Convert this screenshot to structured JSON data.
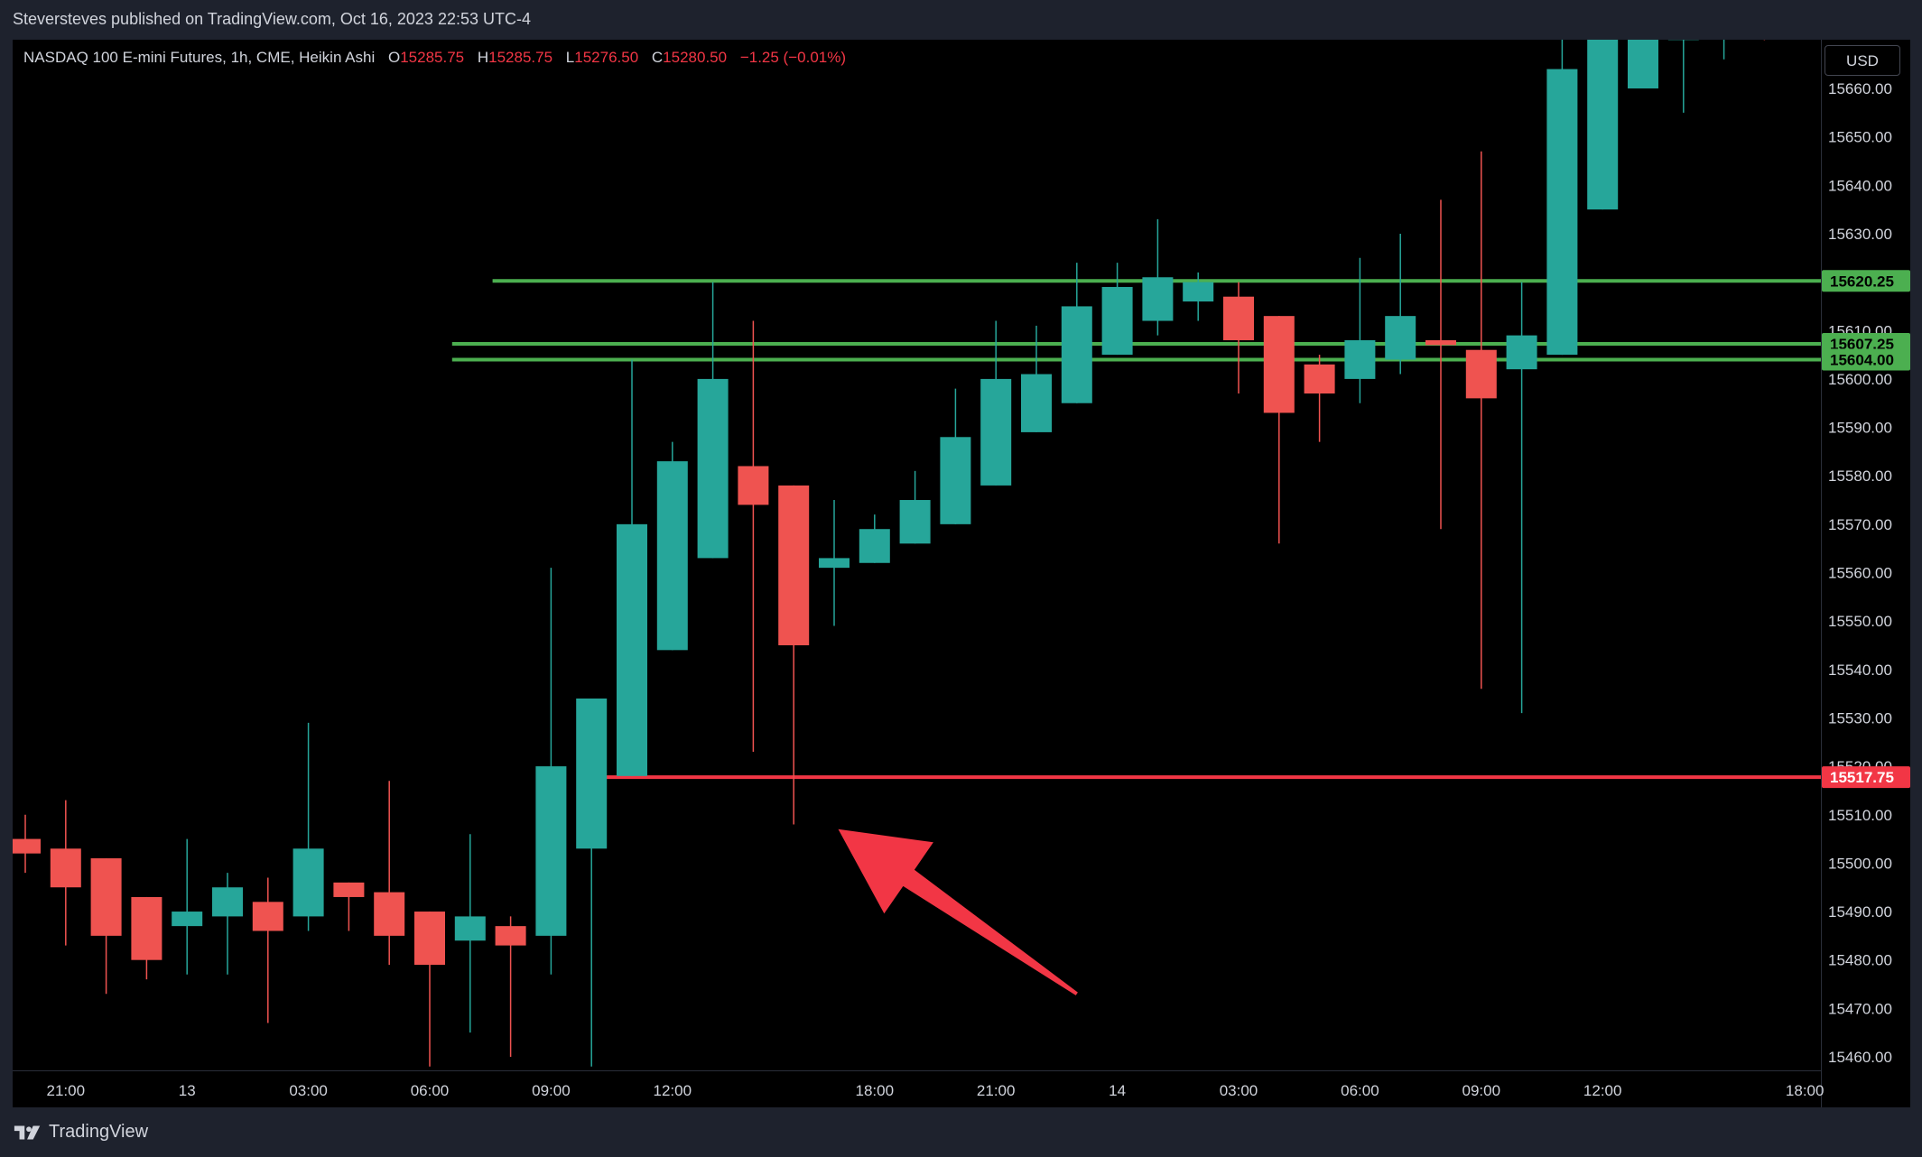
{
  "header": {
    "publish_line": "Steversteves published on TradingView.com, Oct 16, 2023 22:53 UTC-4"
  },
  "legend": {
    "symbol": "NASDAQ 100 E-mini Futures, 1h, CME, Heikin Ashi",
    "o_label": "O",
    "o_value": "15285.75",
    "h_label": "H",
    "h_value": "15285.75",
    "l_label": "L",
    "l_value": "15276.50",
    "c_label": "C",
    "c_value": "15280.50",
    "change": "−1.25 (−0.01%)"
  },
  "toolbar": {
    "currency": "USD"
  },
  "footer": {
    "brand": "TradingView"
  },
  "colors": {
    "up": "#26a69a",
    "down": "#ef5350",
    "support": "#4caf50",
    "resistance": "#f23645",
    "arrow": "#f23645"
  },
  "chart_data": {
    "type": "candlestick",
    "style": "Heikin Ashi",
    "y_axis": {
      "min": 15455,
      "max": 15670,
      "ticks": [
        15460,
        15470,
        15480,
        15490,
        15500,
        15510,
        15520,
        15530,
        15540,
        15550,
        15560,
        15570,
        15580,
        15590,
        15600,
        15610,
        15620,
        15630,
        15640,
        15650,
        15660
      ]
    },
    "x_axis": {
      "ticks": [
        {
          "index": 1,
          "label": "21:00"
        },
        {
          "index": 4,
          "label": "13"
        },
        {
          "index": 7,
          "label": "03:00"
        },
        {
          "index": 10,
          "label": "06:00"
        },
        {
          "index": 13,
          "label": "09:00"
        },
        {
          "index": 16,
          "label": "12:00"
        },
        {
          "index": 21,
          "label": "18:00"
        },
        {
          "index": 24,
          "label": "21:00"
        },
        {
          "index": 27,
          "label": "14"
        },
        {
          "index": 30,
          "label": "03:00"
        },
        {
          "index": 33,
          "label": "06:00"
        },
        {
          "index": 36,
          "label": "09:00"
        },
        {
          "index": 39,
          "label": "12:00"
        },
        {
          "index": 44,
          "label": "18:00"
        }
      ]
    },
    "candles": [
      {
        "o": 15505,
        "h": 15510,
        "l": 15498,
        "c": 15502
      },
      {
        "o": 15503,
        "h": 15513,
        "l": 15483,
        "c": 15495
      },
      {
        "o": 15501,
        "h": 15501,
        "l": 15473,
        "c": 15485
      },
      {
        "o": 15493,
        "h": 15493,
        "l": 15476,
        "c": 15480
      },
      {
        "o": 15487,
        "h": 15505,
        "l": 15477,
        "c": 15490
      },
      {
        "o": 15489,
        "h": 15498,
        "l": 15477,
        "c": 15495
      },
      {
        "o": 15492,
        "h": 15497,
        "l": 15467,
        "c": 15486
      },
      {
        "o": 15489,
        "h": 15529,
        "l": 15486,
        "c": 15503
      },
      {
        "o": 15496,
        "h": 15496,
        "l": 15486,
        "c": 15493
      },
      {
        "o": 15494,
        "h": 15517,
        "l": 15479,
        "c": 15485
      },
      {
        "o": 15490,
        "h": 15490,
        "l": 15458,
        "c": 15479
      },
      {
        "o": 15484,
        "h": 15506,
        "l": 15465,
        "c": 15489
      },
      {
        "o": 15487,
        "h": 15489,
        "l": 15460,
        "c": 15483
      },
      {
        "o": 15485,
        "h": 15561,
        "l": 15477,
        "c": 15520
      },
      {
        "o": 15503,
        "h": 15532,
        "l": 15458,
        "c": 15534
      },
      {
        "o": 15518,
        "h": 15604,
        "l": 15518,
        "c": 15570
      },
      {
        "o": 15544,
        "h": 15587,
        "l": 15544,
        "c": 15583
      },
      {
        "o": 15563,
        "h": 15620,
        "l": 15563,
        "c": 15600
      },
      {
        "o": 15582,
        "h": 15612,
        "l": 15523,
        "c": 15574
      },
      {
        "o": 15578,
        "h": 15578,
        "l": 15508,
        "c": 15545
      },
      {
        "o": 15561,
        "h": 15575,
        "l": 15549,
        "c": 15563
      },
      {
        "o": 15562,
        "h": 15572,
        "l": 15562,
        "c": 15569
      },
      {
        "o": 15566,
        "h": 15581,
        "l": 15566,
        "c": 15575
      },
      {
        "o": 15570,
        "h": 15598,
        "l": 15570,
        "c": 15588
      },
      {
        "o": 15578,
        "h": 15612,
        "l": 15578,
        "c": 15600
      },
      {
        "o": 15589,
        "h": 15611,
        "l": 15589,
        "c": 15601
      },
      {
        "o": 15595,
        "h": 15624,
        "l": 15595,
        "c": 15615
      },
      {
        "o": 15605,
        "h": 15624,
        "l": 15605,
        "c": 15619
      },
      {
        "o": 15612,
        "h": 15633,
        "l": 15609,
        "c": 15621
      },
      {
        "o": 15616,
        "h": 15622,
        "l": 15612,
        "c": 15620
      },
      {
        "o": 15617,
        "h": 15620,
        "l": 15597,
        "c": 15608
      },
      {
        "o": 15613,
        "h": 15613,
        "l": 15566,
        "c": 15593
      },
      {
        "o": 15603,
        "h": 15605,
        "l": 15587,
        "c": 15597
      },
      {
        "o": 15600,
        "h": 15625,
        "l": 15595,
        "c": 15608
      },
      {
        "o": 15604,
        "h": 15630,
        "l": 15601,
        "c": 15613
      },
      {
        "o": 15608,
        "h": 15637,
        "l": 15569,
        "c": 15607
      },
      {
        "o": 15606,
        "h": 15647,
        "l": 15536,
        "c": 15596
      },
      {
        "o": 15602,
        "h": 15620,
        "l": 15531,
        "c": 15609
      },
      {
        "o": 15605,
        "h": 15679,
        "l": 15605,
        "c": 15664
      },
      {
        "o": 15635,
        "h": 15685,
        "l": 15635,
        "c": 15680
      },
      {
        "o": 15660,
        "h": 15690,
        "l": 15660,
        "c": 15685
      },
      {
        "o": 15670,
        "h": 15692,
        "l": 15655,
        "c": 15690
      },
      {
        "o": 15680,
        "h": 15700,
        "l": 15666,
        "c": 15695
      },
      {
        "o": 15690,
        "h": 15700,
        "l": 15670,
        "c": 15685
      }
    ],
    "horizontal_lines": [
      {
        "price": 15620.25,
        "label": "15620.25",
        "color": "#4caf50",
        "start_index": 12
      },
      {
        "price": 15607.25,
        "label": "15607.25",
        "color": "#4caf50",
        "start_index": 11
      },
      {
        "price": 15604.0,
        "label": "15604.00",
        "color": "#4caf50",
        "start_index": 11
      },
      {
        "price": 15517.75,
        "label": "15517.75",
        "color": "#f23645",
        "start_index": 14.3
      }
    ],
    "annotation_arrow": {
      "tail": {
        "index": 26,
        "price": 15473
      },
      "head": {
        "index": 20.1,
        "price": 15507
      },
      "color": "#f23645"
    }
  }
}
